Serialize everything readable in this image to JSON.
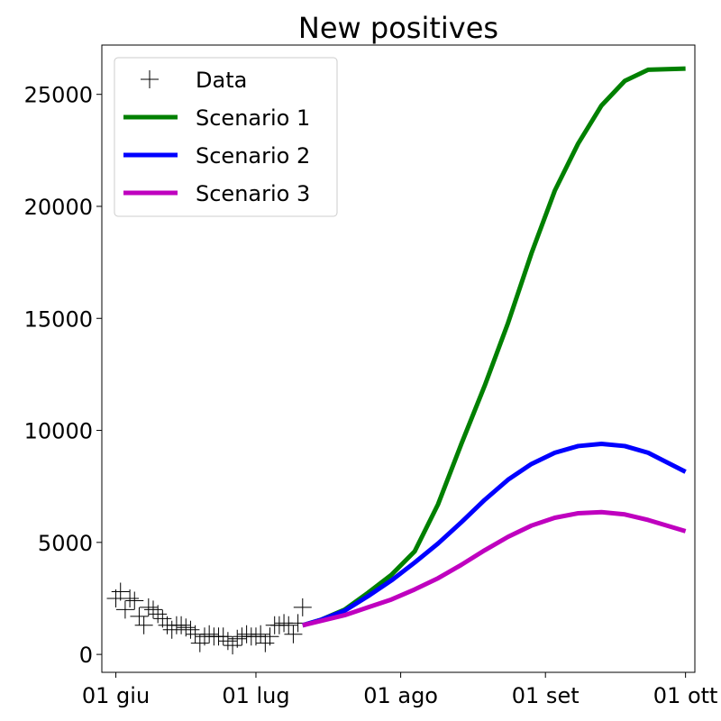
{
  "chart_data": {
    "type": "line",
    "title": "New positives",
    "xlabel": "",
    "ylabel": "",
    "x_ticks": [
      "01 giu",
      "01 lug",
      "01 ago",
      "01 set",
      "01 ott"
    ],
    "x_range": [
      "2020-05-29",
      "2020-10-03"
    ],
    "y_ticks": [
      0,
      5000,
      10000,
      15000,
      20000,
      25000
    ],
    "ylim": [
      -800,
      27200
    ],
    "grid": false,
    "legend_position": "upper left",
    "series": [
      {
        "name": "Data",
        "marker": "+",
        "color": "#000000",
        "points": [
          [
            "2020-06-01",
            2500
          ],
          [
            "2020-06-02",
            2800
          ],
          [
            "2020-06-03",
            2000
          ],
          [
            "2020-06-04",
            2500
          ],
          [
            "2020-06-05",
            2400
          ],
          [
            "2020-06-06",
            1700
          ],
          [
            "2020-06-07",
            1300
          ],
          [
            "2020-06-08",
            2100
          ],
          [
            "2020-06-09",
            2000
          ],
          [
            "2020-06-10",
            1800
          ],
          [
            "2020-06-11",
            1600
          ],
          [
            "2020-06-12",
            1300
          ],
          [
            "2020-06-13",
            1100
          ],
          [
            "2020-06-14",
            1300
          ],
          [
            "2020-06-15",
            1300
          ],
          [
            "2020-06-16",
            1200
          ],
          [
            "2020-06-17",
            1100
          ],
          [
            "2020-06-18",
            900
          ],
          [
            "2020-06-19",
            500
          ],
          [
            "2020-06-20",
            800
          ],
          [
            "2020-06-21",
            900
          ],
          [
            "2020-06-22",
            800
          ],
          [
            "2020-06-23",
            800
          ],
          [
            "2020-06-24",
            800
          ],
          [
            "2020-06-25",
            600
          ],
          [
            "2020-06-26",
            400
          ],
          [
            "2020-06-27",
            700
          ],
          [
            "2020-06-28",
            800
          ],
          [
            "2020-06-29",
            900
          ],
          [
            "2020-06-30",
            800
          ],
          [
            "2020-07-01",
            800
          ],
          [
            "2020-07-02",
            900
          ],
          [
            "2020-07-03",
            500
          ],
          [
            "2020-07-04",
            800
          ],
          [
            "2020-07-05",
            1300
          ],
          [
            "2020-07-06",
            1300
          ],
          [
            "2020-07-07",
            1400
          ],
          [
            "2020-07-08",
            1300
          ],
          [
            "2020-07-09",
            900
          ],
          [
            "2020-07-10",
            1400
          ],
          [
            "2020-07-11",
            2100
          ]
        ]
      },
      {
        "name": "Scenario 1",
        "color": "#008000",
        "points": [
          [
            "2020-07-11",
            1300
          ],
          [
            "2020-07-15",
            1550
          ],
          [
            "2020-07-20",
            2000
          ],
          [
            "2020-07-25",
            2750
          ],
          [
            "2020-07-30",
            3550
          ],
          [
            "2020-08-04",
            4600
          ],
          [
            "2020-08-09",
            6700
          ],
          [
            "2020-08-14",
            9400
          ],
          [
            "2020-08-19",
            12000
          ],
          [
            "2020-08-24",
            14800
          ],
          [
            "2020-08-29",
            17900
          ],
          [
            "2020-09-03",
            20700
          ],
          [
            "2020-09-08",
            22800
          ],
          [
            "2020-09-13",
            24500
          ],
          [
            "2020-09-18",
            25600
          ],
          [
            "2020-09-23",
            26100
          ],
          [
            "2020-10-01",
            26150
          ]
        ]
      },
      {
        "name": "Scenario 2",
        "color": "#0000ff",
        "points": [
          [
            "2020-07-11",
            1300
          ],
          [
            "2020-07-15",
            1550
          ],
          [
            "2020-07-20",
            1950
          ],
          [
            "2020-07-25",
            2600
          ],
          [
            "2020-07-30",
            3300
          ],
          [
            "2020-08-04",
            4100
          ],
          [
            "2020-08-09",
            4950
          ],
          [
            "2020-08-14",
            5900
          ],
          [
            "2020-08-19",
            6900
          ],
          [
            "2020-08-24",
            7800
          ],
          [
            "2020-08-29",
            8500
          ],
          [
            "2020-09-03",
            9000
          ],
          [
            "2020-09-08",
            9300
          ],
          [
            "2020-09-13",
            9400
          ],
          [
            "2020-09-18",
            9300
          ],
          [
            "2020-09-23",
            9000
          ],
          [
            "2020-10-01",
            8150
          ]
        ]
      },
      {
        "name": "Scenario 3",
        "color": "#bf00bf",
        "points": [
          [
            "2020-07-11",
            1300
          ],
          [
            "2020-07-15",
            1500
          ],
          [
            "2020-07-20",
            1750
          ],
          [
            "2020-07-25",
            2100
          ],
          [
            "2020-07-30",
            2450
          ],
          [
            "2020-08-04",
            2900
          ],
          [
            "2020-08-09",
            3400
          ],
          [
            "2020-08-14",
            4000
          ],
          [
            "2020-08-19",
            4650
          ],
          [
            "2020-08-24",
            5250
          ],
          [
            "2020-08-29",
            5750
          ],
          [
            "2020-09-03",
            6100
          ],
          [
            "2020-09-08",
            6300
          ],
          [
            "2020-09-13",
            6350
          ],
          [
            "2020-09-18",
            6250
          ],
          [
            "2020-09-23",
            6000
          ],
          [
            "2020-10-01",
            5500
          ]
        ]
      }
    ]
  }
}
